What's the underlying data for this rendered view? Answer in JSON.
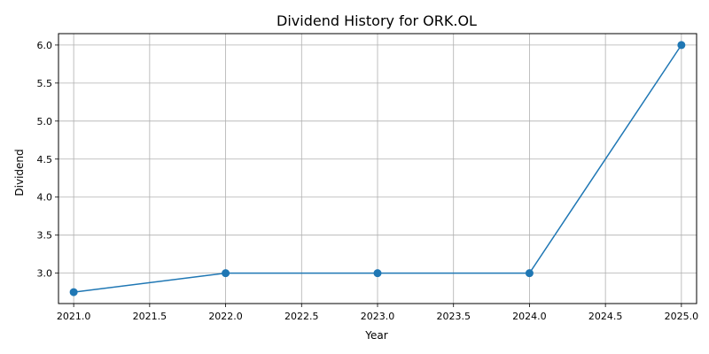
{
  "chart_data": {
    "type": "line",
    "title": "Dividend History for ORK.OL",
    "xlabel": "Year",
    "ylabel": "Dividend",
    "xlim": [
      2020.9,
      2025.1
    ],
    "ylim": [
      2.6,
      6.15
    ],
    "grid": true,
    "x_ticks": [
      2021.0,
      2021.5,
      2022.0,
      2022.5,
      2023.0,
      2023.5,
      2024.0,
      2024.5,
      2025.0
    ],
    "x_tick_labels": [
      "2021.0",
      "2021.5",
      "2022.0",
      "2022.5",
      "2023.0",
      "2023.5",
      "2024.0",
      "2024.5",
      "2025.0"
    ],
    "y_ticks": [
      3.0,
      3.5,
      4.0,
      4.5,
      5.0,
      5.5,
      6.0
    ],
    "y_tick_labels": [
      "3.0",
      "3.5",
      "4.0",
      "4.5",
      "5.0",
      "5.5",
      "6.0"
    ],
    "series": [
      {
        "color": "#1f77b4",
        "marker": "circle",
        "x": [
          2021,
          2022,
          2023,
          2024,
          2025
        ],
        "y": [
          2.75,
          3.0,
          3.0,
          3.0,
          6.0
        ]
      }
    ]
  }
}
